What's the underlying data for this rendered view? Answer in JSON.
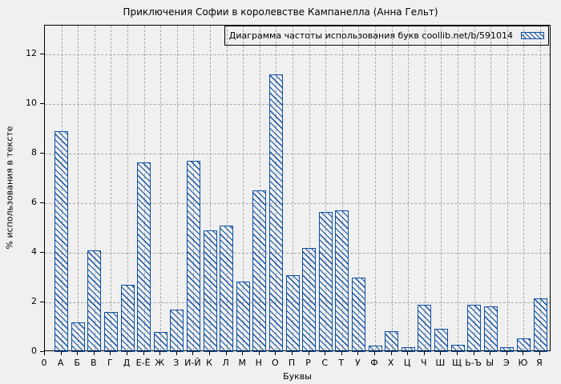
{
  "title": "Приключения Софии в королевстве Кампанелла (Анна Гельт)",
  "legend": {
    "label": "Диаграмма частоты использования букв coollib.net/b/591014",
    "swatch": "blue-hatched-bar-sample"
  },
  "axes": {
    "ylabel": "% использования в тексте",
    "xlabel": "Буквы"
  },
  "colors": {
    "bar": "#0d4fa5",
    "background": "#f0f0f0",
    "grid": "#a6a6a6",
    "border": "#000000"
  },
  "chart_data": {
    "type": "bar",
    "title": "Приключения Софии в королевстве Кампанелла (Анна Гельт)",
    "legend_entries": [
      "Диаграмма частоты использования букв coollib.net/b/591014"
    ],
    "legend_position": "top-right",
    "xlabel": "Буквы",
    "ylabel": "% использования в тексте",
    "categories": [
      "0",
      "А",
      "Б",
      "В",
      "Г",
      "Д",
      "Е-Ё",
      "Ж",
      "З",
      "И-Й",
      "К",
      "Л",
      "М",
      "Н",
      "О",
      "П",
      "Р",
      "С",
      "Т",
      "У",
      "Ф",
      "Х",
      "Ц",
      "Ч",
      "Ш",
      "Щ",
      "Ь-Ъ",
      "Ы",
      "Э",
      "Ю",
      "Я"
    ],
    "values": [
      0,
      8.9,
      1.2,
      4.1,
      1.6,
      2.7,
      7.65,
      0.8,
      1.7,
      7.7,
      4.9,
      5.1,
      2.85,
      6.5,
      11.2,
      3.1,
      4.2,
      5.65,
      5.7,
      3.0,
      0.25,
      0.85,
      0.2,
      1.9,
      0.95,
      0.3,
      1.9,
      1.85,
      0.2,
      0.55,
      2.15
    ],
    "yticks": [
      0,
      2,
      4,
      6,
      8,
      10,
      12
    ],
    "ylim": [
      0,
      13.15
    ],
    "grid": true,
    "hatch": "\\\\",
    "bar_color": "#0d4fa5"
  }
}
